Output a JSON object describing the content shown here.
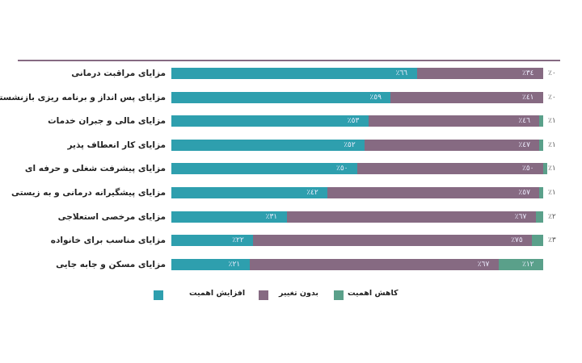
{
  "chart_data": {
    "type": "bar",
    "orientation": "horizontal",
    "stacked": true,
    "xlim": [
      0,
      100
    ],
    "categories": [
      "مزایای مراقبت درمانی",
      "مزایای پس انداز و برنامه ریزی بازنشستگی",
      "مزایای مالی و جبران خدمات",
      "مزایای کار انعطاف پذیر",
      "مزایای پیشرفت شغلی و حرفه ای",
      "مزایای پیشگیرانه درمانی و به زیستی",
      "مزایای مرخصی استعلاجی",
      "مزایای مناسب برای خانواده",
      "مزایای مسکن و جابه جایی"
    ],
    "series": [
      {
        "name": "افزایش اهمیت",
        "color": "#2e9fae",
        "values": [
          66,
          59,
          53,
          52,
          50,
          42,
          31,
          22,
          21
        ],
        "labels": [
          "٪٦٦",
          "٪٥٩",
          "٪٥٣",
          "٪٥٢",
          "٪٥٠",
          "٪٤٢",
          "٪٣١",
          "٪٢٢",
          "٪٢١"
        ]
      },
      {
        "name": "بدون تغییر",
        "color": "#866a82",
        "values": [
          34,
          41,
          46,
          47,
          50,
          57,
          67,
          75,
          67
        ],
        "labels": [
          "٪٣٤",
          "٪٤١",
          "٪٤٦",
          "٪٤٧",
          "٪٥٠",
          "٪٥٧",
          "٪٦٧",
          "٪٧٥",
          "٪٦٧"
        ]
      },
      {
        "name": "کاهش اهمیت",
        "color": "#5aa08a",
        "values": [
          0,
          0,
          1,
          1,
          1,
          1,
          2,
          3,
          12
        ],
        "labels": [
          "٪٠",
          "٪٠",
          "٪١",
          "٪١",
          "٪١",
          "٪١",
          "٪٢",
          "٪٣",
          "٪١٢"
        ]
      }
    ],
    "legend_position": "bottom",
    "grid": false
  }
}
